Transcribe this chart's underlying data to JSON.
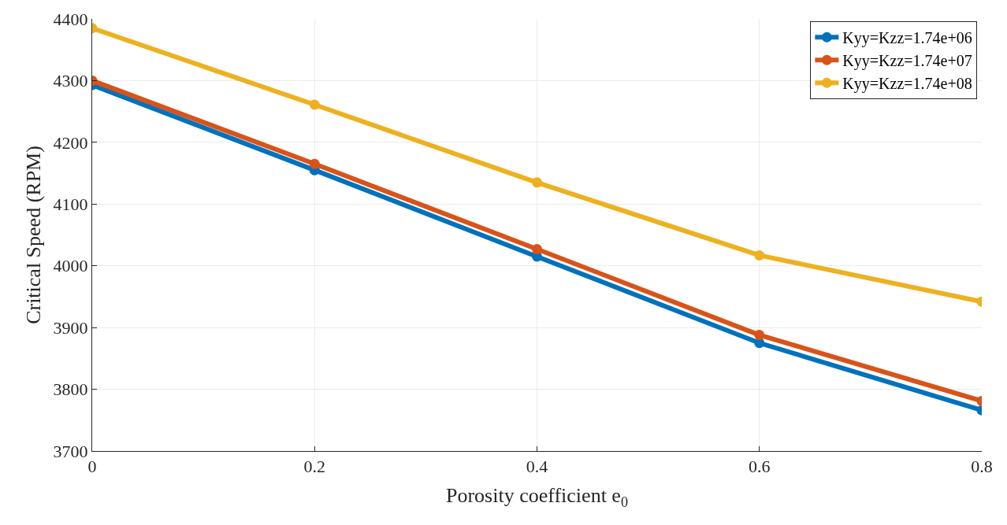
{
  "chart_data": {
    "type": "line",
    "xlabel": "Porosity coefficient e$_{0}$",
    "ylabel": "Critical Speed (RPM)",
    "x": [
      0,
      0.2,
      0.4,
      0.6,
      0.8
    ],
    "series": [
      {
        "name": "Kyy=Kzz=1.74e+06",
        "color": "#0072bd",
        "values": [
          4293,
          4155,
          4015,
          3875,
          3766
        ]
      },
      {
        "name": "Kyy=Kzz=1.74e+07",
        "color": "#d95319",
        "values": [
          4300,
          4165,
          4027,
          3888,
          3781
        ]
      },
      {
        "name": "Kyy=Kzz=1.74e+08",
        "color": "#edb120",
        "values": [
          4385,
          4261,
          4135,
          4017,
          3942
        ]
      }
    ],
    "xlim": [
      0,
      0.8
    ],
    "xticks": [
      0,
      0.2,
      0.4,
      0.6,
      0.8
    ],
    "ylim": [
      3700,
      4400
    ],
    "yticks": [
      3700,
      3800,
      3900,
      4000,
      4100,
      4200,
      4300,
      4400
    ],
    "grid": true,
    "legend": "top right",
    "marker": "circle",
    "line_style": "solid"
  }
}
